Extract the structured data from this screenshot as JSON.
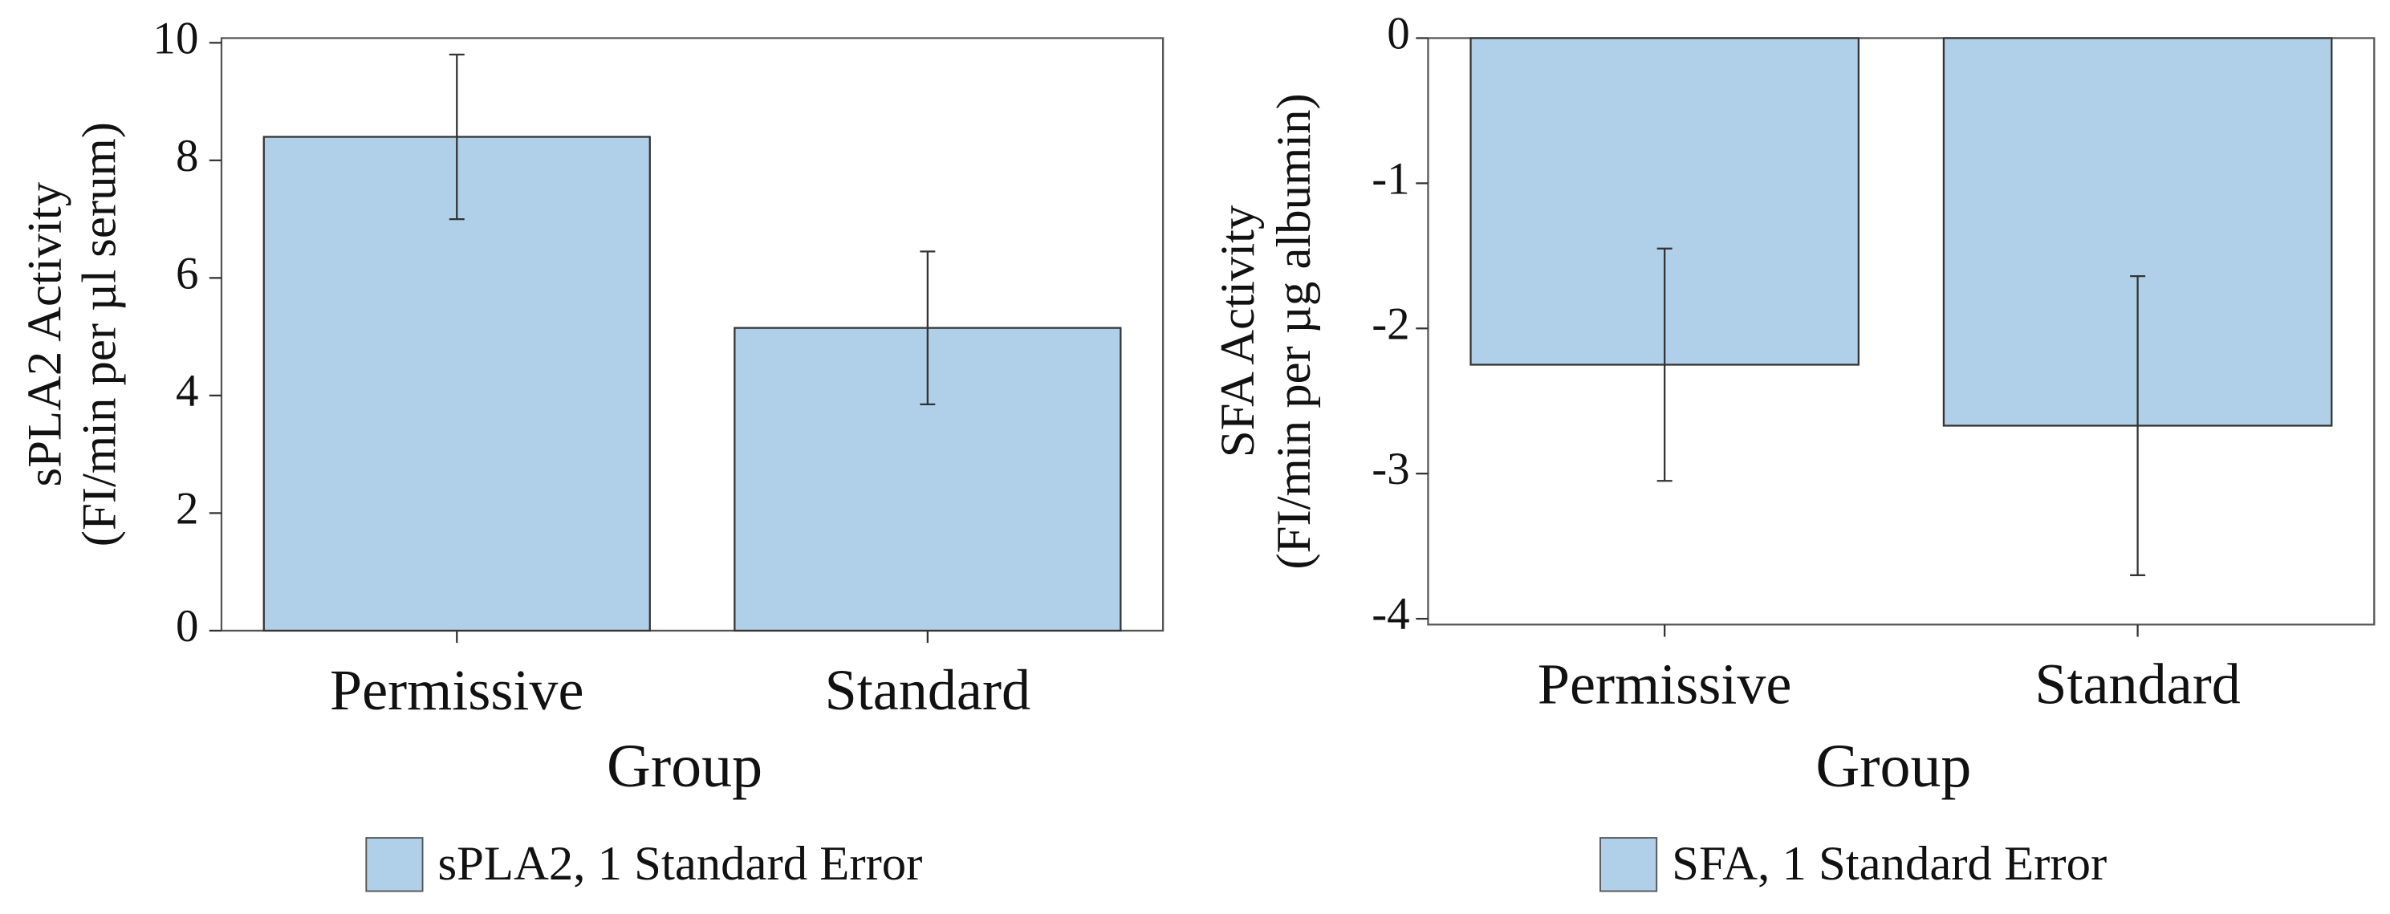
{
  "chart_data": [
    {
      "type": "bar",
      "ylabel": [
        "sPLA2 Activity",
        "(FI/min per µl serum)"
      ],
      "xlabel": "Group",
      "categories": [
        "Permissive",
        "Standard"
      ],
      "series": [
        {
          "name": "sPLA2, 1 Standard Error",
          "color": "#b0cfe8",
          "values": [
            8.4,
            5.15
          ],
          "errors": [
            1.4,
            1.3
          ]
        }
      ],
      "ylim": [
        0,
        10.08
      ],
      "yticks": [
        0,
        2,
        4,
        6,
        8,
        10
      ]
    },
    {
      "type": "bar",
      "ylabel": [
        "SFA Activity",
        "(FI/min per µg albumin)"
      ],
      "xlabel": "Group",
      "categories": [
        "Permissive",
        "Standard"
      ],
      "series": [
        {
          "name": "SFA, 1 Standard Error",
          "color": "#b0cfe8",
          "values": [
            -2.25,
            -2.67
          ],
          "errors": [
            0.8,
            1.03
          ]
        }
      ],
      "ylim": [
        -4.04,
        0
      ],
      "yticks": [
        0,
        -1,
        -2,
        -3,
        -4
      ]
    }
  ]
}
